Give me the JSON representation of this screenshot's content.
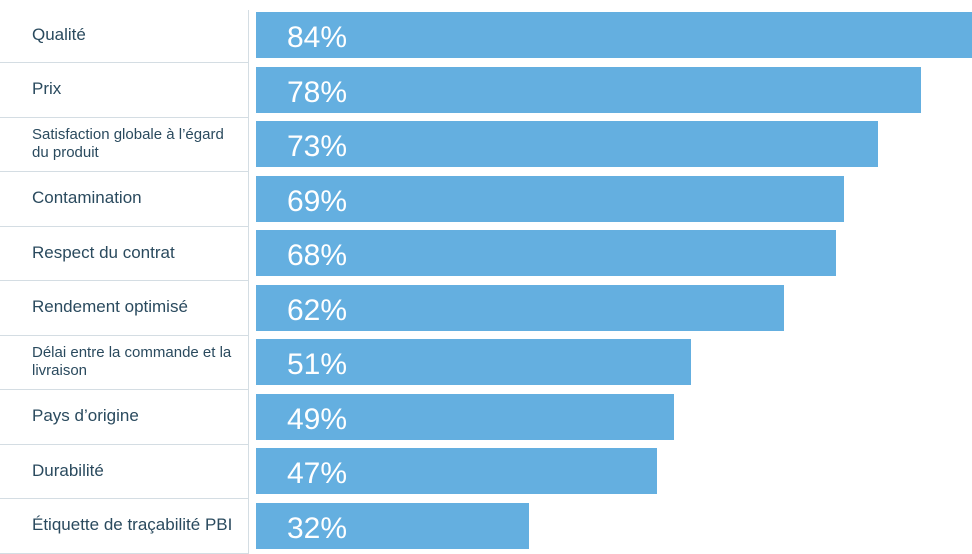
{
  "chart_data": {
    "type": "bar",
    "orientation": "horizontal",
    "categories": [
      "Qualité",
      "Prix",
      "Satisfaction globale à l’égard du produit",
      "Contamination",
      "Respect du contrat",
      "Rendement optimisé",
      "Délai entre la commande et la livraison",
      "Pays d’origine",
      "Durabilité",
      "Étiquette de traçabilité PBI"
    ],
    "values": [
      84,
      78,
      73,
      69,
      68,
      62,
      51,
      49,
      47,
      32
    ],
    "value_labels": [
      "84%",
      "78%",
      "73%",
      "69%",
      "68%",
      "62%",
      "51%",
      "49%",
      "47%",
      "32%"
    ],
    "unit": "%",
    "title": "",
    "xlabel": "",
    "ylabel": "",
    "xlim": [
      0,
      84
    ],
    "grid": false,
    "legend": "none",
    "colors": {
      "bar": "#64afe0",
      "value_text": "#ffffff",
      "label_text": "#2a4a5e",
      "divider": "#d4dde3"
    }
  }
}
